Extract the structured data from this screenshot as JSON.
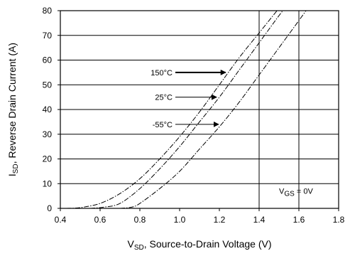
{
  "chart_data": {
    "type": "line",
    "xlim": [
      0.4,
      1.8
    ],
    "ylim": [
      0,
      80
    ],
    "x_ticks": [
      "0.4",
      "0.6",
      "0.8",
      "1.0",
      "1.2",
      "1.4",
      "1.6",
      "1.8"
    ],
    "y_ticks": [
      "0",
      "10",
      "20",
      "30",
      "40",
      "50",
      "60",
      "70",
      "80"
    ],
    "grid": "horizontal",
    "xlabel": {
      "main": "V",
      "sub": "SD",
      "rest": ", Source-to-Drain Voltage (V)"
    },
    "ylabel": {
      "main": "I",
      "sub": "SD",
      "rest": ", Reverse Drain Current (A)"
    },
    "condition": {
      "main": "V",
      "sub": "GS",
      "rest": " = 0V"
    },
    "series": [
      {
        "name": "150°C",
        "points": [
          [
            0.43,
            0
          ],
          [
            0.5,
            0.3
          ],
          [
            0.6,
            2
          ],
          [
            0.7,
            6
          ],
          [
            0.8,
            12
          ],
          [
            0.9,
            20
          ],
          [
            1.0,
            29
          ],
          [
            1.1,
            39
          ],
          [
            1.2,
            50
          ],
          [
            1.3,
            61
          ],
          [
            1.4,
            71
          ],
          [
            1.5,
            81
          ]
        ]
      },
      {
        "name": "25°C",
        "points": [
          [
            0.55,
            0
          ],
          [
            0.62,
            0.5
          ],
          [
            0.7,
            2
          ],
          [
            0.8,
            8
          ],
          [
            0.9,
            16
          ],
          [
            1.0,
            25
          ],
          [
            1.1,
            35
          ],
          [
            1.2,
            45
          ],
          [
            1.3,
            56
          ],
          [
            1.4,
            67
          ],
          [
            1.5,
            78
          ],
          [
            1.55,
            83
          ]
        ]
      },
      {
        "name": "-55°C",
        "points": [
          [
            0.7,
            0
          ],
          [
            0.76,
            0.5
          ],
          [
            0.8,
            2
          ],
          [
            0.9,
            8
          ],
          [
            1.0,
            15
          ],
          [
            1.1,
            24
          ],
          [
            1.2,
            33
          ],
          [
            1.3,
            43
          ],
          [
            1.4,
            54
          ],
          [
            1.5,
            65
          ],
          [
            1.6,
            76
          ],
          [
            1.68,
            85
          ]
        ]
      }
    ],
    "annotations": [
      {
        "text": "150°C",
        "series": 0,
        "label_at": [
          1.0,
          55
        ],
        "arrow_to_y": 55
      },
      {
        "text": "25°C",
        "series": 1,
        "label_at": [
          1.0,
          45
        ],
        "arrow_to_y": 45
      },
      {
        "text": "-55°C",
        "series": 2,
        "label_at": [
          1.0,
          34
        ],
        "arrow_to_y": 34
      }
    ],
    "vertical_marker_x": [
      1.4,
      1.6
    ]
  }
}
